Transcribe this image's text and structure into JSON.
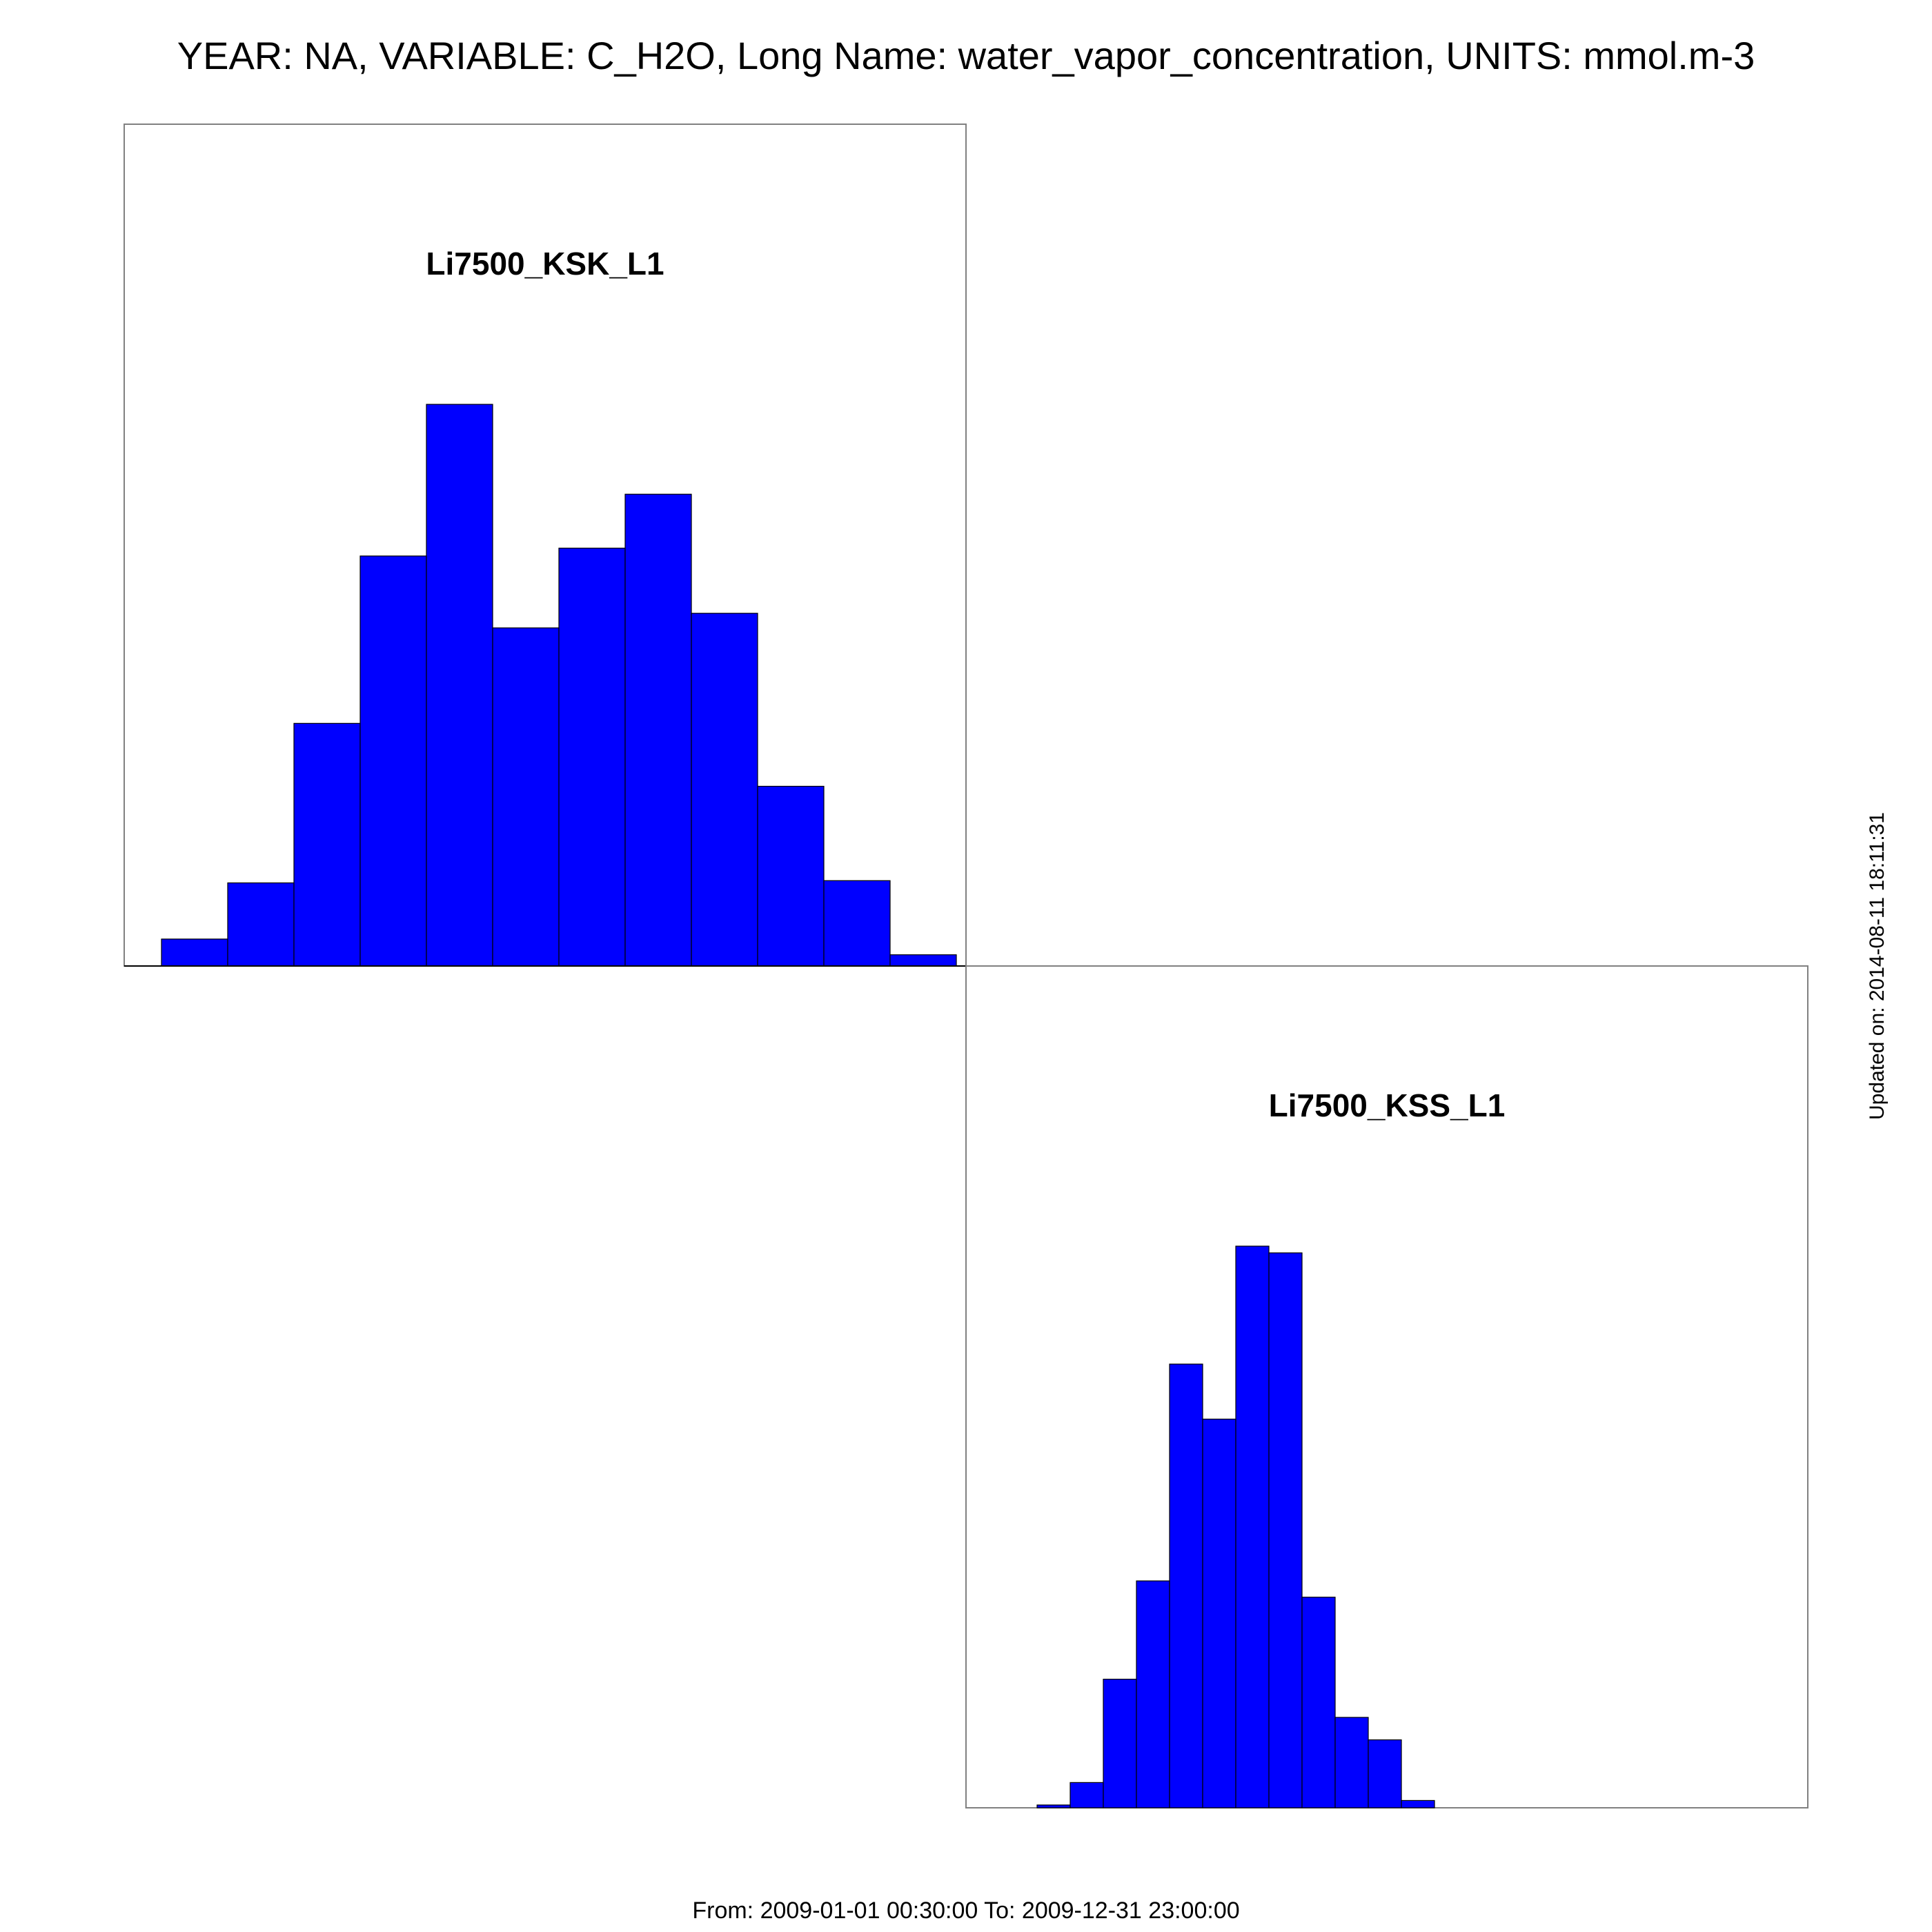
{
  "header": {
    "title": "YEAR: NA, VARIABLE: C_H2O, Long Name: water_vapor_concentration, UNITS: mmol.m-3"
  },
  "footer": {
    "date_range": "From: 2009-01-01 00:30:00 To: 2009-12-31 23:00:00"
  },
  "side_note": "Updated on: 2014-08-11 18:11:31",
  "colors": {
    "bar_fill": "#0000ff",
    "bar_edge": "#000000",
    "frame": "#808080"
  },
  "chart_data": [
    {
      "type": "bar",
      "title": "Li7500_KSK_L1",
      "xlabel": "",
      "ylabel": "",
      "grid": false,
      "axes_ticks_shown": false,
      "bins": 12,
      "values": [
        0.048,
        0.148,
        0.432,
        0.73,
        1.0,
        0.602,
        0.744,
        0.84,
        0.628,
        0.32,
        0.152,
        0.02
      ],
      "ylim": [
        0,
        1.5
      ]
    },
    {
      "type": "bar",
      "title": "Li7500_KSS_L1",
      "xlabel": "",
      "ylabel": "",
      "grid": false,
      "axes_ticks_shown": false,
      "bins": 12,
      "values": [
        0.005,
        0.045,
        0.229,
        0.404,
        0.79,
        0.692,
        1.0,
        0.988,
        0.375,
        0.161,
        0.121,
        0.013
      ],
      "ylim": [
        0,
        1.5
      ]
    }
  ]
}
